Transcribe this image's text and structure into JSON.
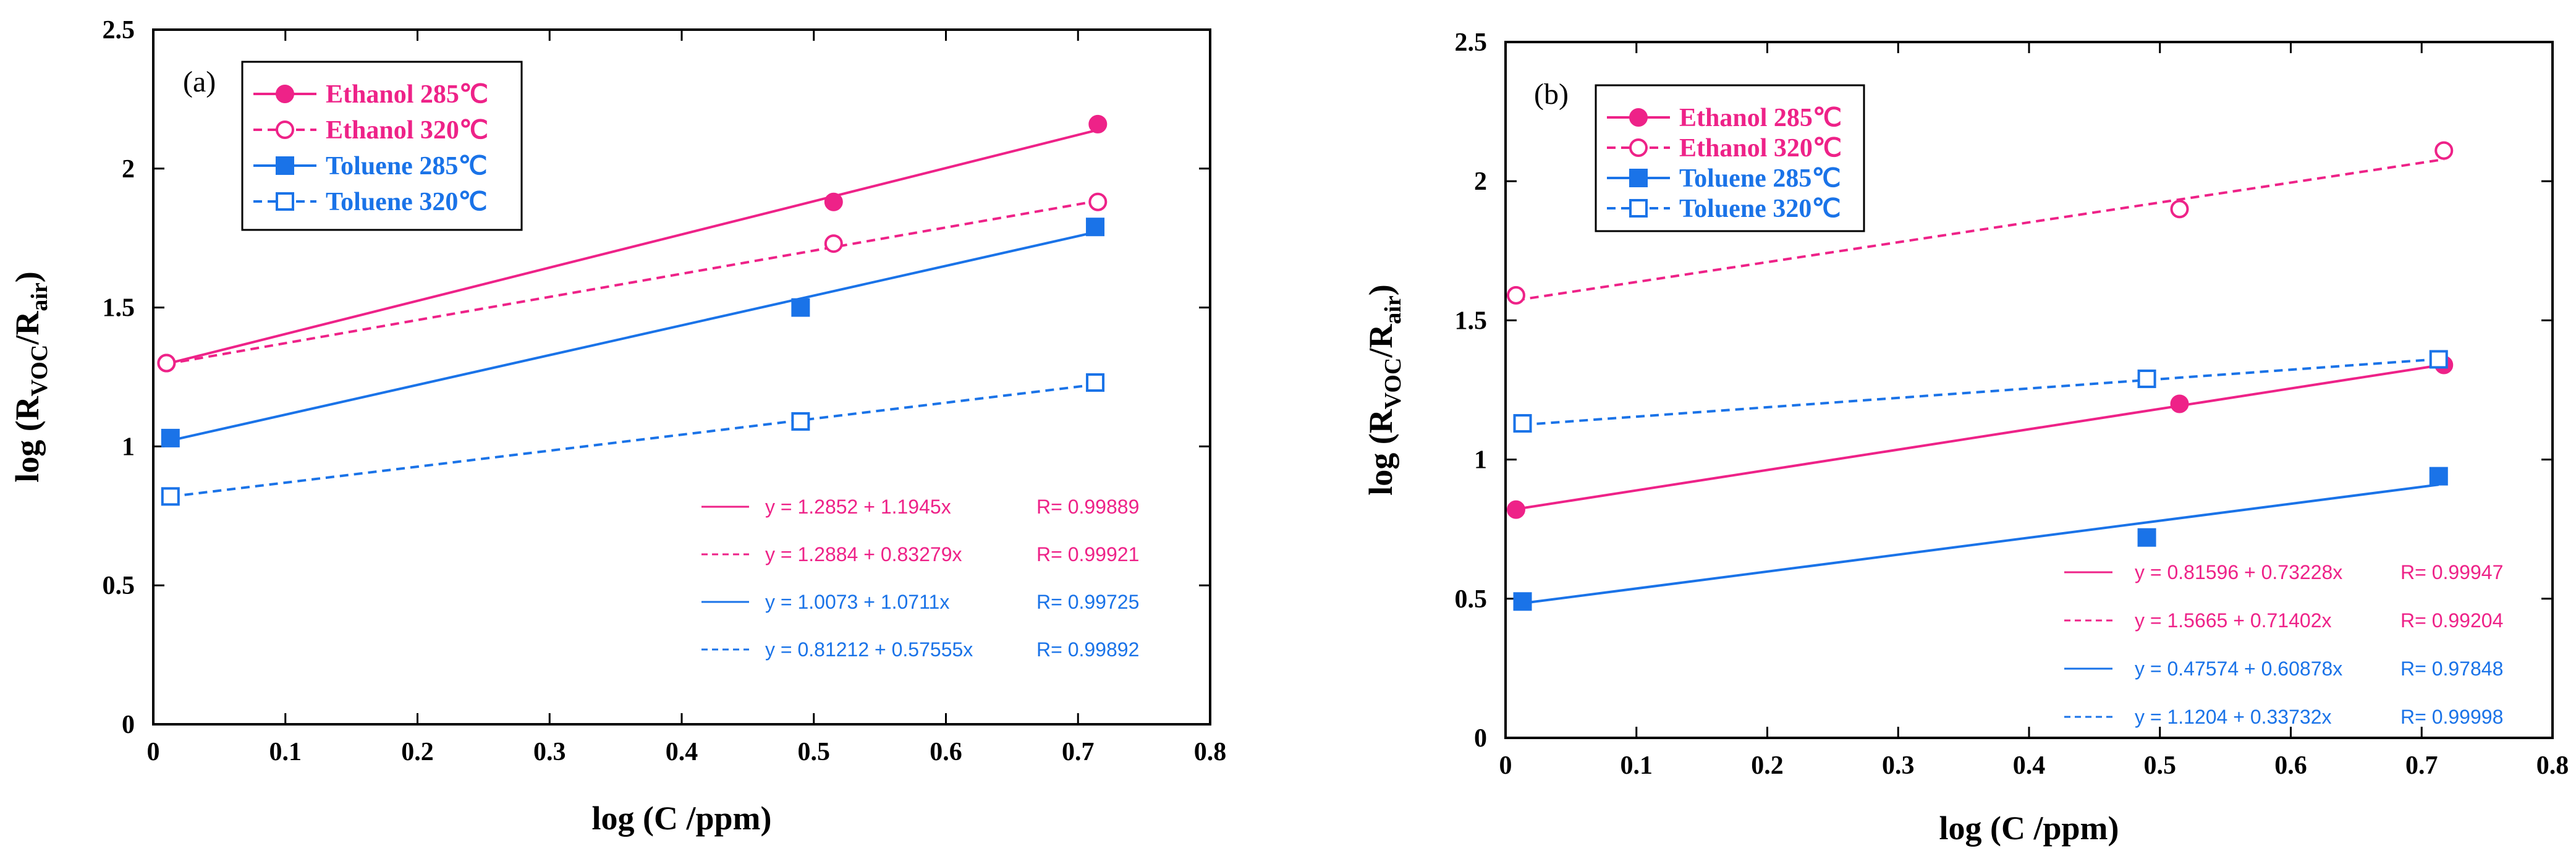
{
  "chart_data": [
    {
      "type": "scatter",
      "panel_label": "(a)",
      "xlabel": "log (C /ppm)",
      "ylabel": {
        "main": "log (R",
        "sub1": "VOC",
        "mid": "/R",
        "sub2": "air",
        "end": ")"
      },
      "xlim": [
        0,
        0.8
      ],
      "ylim": [
        0,
        2.5
      ],
      "xticks": [
        0,
        0.1,
        0.2,
        0.3,
        0.4,
        0.5,
        0.6,
        0.7,
        0.8
      ],
      "xtick_labels": [
        "0",
        "0.1",
        "0.2",
        "0.3",
        "0.4",
        "0.5",
        "0.6",
        "0.7",
        "0.8"
      ],
      "yticks": [
        0,
        0.5,
        1,
        1.5,
        2,
        2.5
      ],
      "ytick_labels": [
        "0",
        "0.5",
        "1",
        "1.5",
        "2",
        "2.5"
      ],
      "legend_position": "top-left",
      "series": [
        {
          "name": "Ethanol 285℃",
          "color": "#ee2288",
          "marker": "filled-circle",
          "line": "solid",
          "x": [
            0.01,
            0.515,
            0.715
          ],
          "y": [
            1.3,
            1.88,
            2.16
          ],
          "fit": {
            "intercept": 1.2852,
            "slope": 1.1945,
            "x_range": [
              0.01,
              0.715
            ],
            "label": "y = 1.2852 + 1.1945x",
            "r": "R= 0.99889"
          }
        },
        {
          "name": "Ethanol 320℃",
          "color": "#ee2288",
          "marker": "open-circle",
          "line": "dashed",
          "x": [
            0.01,
            0.515,
            0.715
          ],
          "y": [
            1.3,
            1.73,
            1.88
          ],
          "fit": {
            "intercept": 1.2884,
            "slope": 0.83279,
            "x_range": [
              0.01,
              0.715
            ],
            "label": "y = 1.2884 + 0.83279x",
            "r": "R= 0.99921"
          }
        },
        {
          "name": "Toluene 285℃",
          "color": "#1a73e8",
          "marker": "filled-square",
          "line": "solid",
          "x": [
            0.013,
            0.49,
            0.713
          ],
          "y": [
            1.03,
            1.5,
            1.79
          ],
          "fit": {
            "intercept": 1.0073,
            "slope": 1.0711,
            "x_range": [
              0.013,
              0.713
            ],
            "label": "y = 1.0073 + 1.0711x",
            "r": "R= 0.99725"
          }
        },
        {
          "name": "Toluene 320℃",
          "color": "#1a73e8",
          "marker": "open-square",
          "line": "dashed",
          "x": [
            0.013,
            0.49,
            0.713
          ],
          "y": [
            0.82,
            1.09,
            1.23
          ],
          "fit": {
            "intercept": 0.81212,
            "slope": 0.57555,
            "x_range": [
              0.013,
              0.713
            ],
            "label": "y = 0.81212 + 0.57555x",
            "r": "R= 0.99892"
          }
        }
      ]
    },
    {
      "type": "scatter",
      "panel_label": "(b)",
      "xlabel": "log (C /ppm)",
      "ylabel": {
        "main": "log (R",
        "sub1": "VOC",
        "mid": "/R",
        "sub2": "air",
        "end": ")"
      },
      "xlim": [
        0,
        0.8
      ],
      "ylim": [
        0,
        2.5
      ],
      "xticks": [
        0,
        0.1,
        0.2,
        0.3,
        0.4,
        0.5,
        0.6,
        0.7,
        0.8
      ],
      "xtick_labels": [
        "0",
        "0.1",
        "0.2",
        "0.3",
        "0.4",
        "0.5",
        "0.6",
        "0.7",
        "0.8"
      ],
      "yticks": [
        0,
        0.5,
        1,
        1.5,
        2,
        2.5
      ],
      "ytick_labels": [
        "0",
        "0.5",
        "1",
        "1.5",
        "2",
        "2.5"
      ],
      "legend_position": "top-left",
      "series": [
        {
          "name": "Ethanol 285℃",
          "color": "#ee2288",
          "marker": "filled-circle",
          "line": "solid",
          "x": [
            0.008,
            0.515,
            0.717
          ],
          "y": [
            0.82,
            1.2,
            1.34
          ],
          "fit": {
            "intercept": 0.81596,
            "slope": 0.73228,
            "x_range": [
              0.008,
              0.717
            ],
            "label": "y = 0.81596 + 0.73228x",
            "r": "R= 0.99947"
          }
        },
        {
          "name": "Ethanol 320℃",
          "color": "#ee2288",
          "marker": "open-circle",
          "line": "dashed",
          "x": [
            0.008,
            0.515,
            0.717
          ],
          "y": [
            1.59,
            1.9,
            2.11
          ],
          "fit": {
            "intercept": 1.5665,
            "slope": 0.71402,
            "x_range": [
              0.008,
              0.717
            ],
            "label": "y = 1.5665 + 0.71402x",
            "r": "R= 0.99204"
          }
        },
        {
          "name": "Toluene 285℃",
          "color": "#1a73e8",
          "marker": "filled-square",
          "line": "solid",
          "x": [
            0.013,
            0.49,
            0.713
          ],
          "y": [
            0.49,
            0.72,
            0.94
          ],
          "fit": {
            "intercept": 0.47574,
            "slope": 0.60878,
            "x_range": [
              0.013,
              0.713
            ],
            "label": "y = 0.47574 + 0.60878x",
            "r": "R= 0.97848"
          }
        },
        {
          "name": "Toluene 320℃",
          "color": "#1a73e8",
          "marker": "open-square",
          "line": "dashed",
          "x": [
            0.013,
            0.49,
            0.713
          ],
          "y": [
            1.13,
            1.29,
            1.36
          ],
          "fit": {
            "intercept": 1.1204,
            "slope": 0.33732,
            "x_range": [
              0.013,
              0.713
            ],
            "label": "y = 1.1204 + 0.33732x",
            "r": "R= 0.99998"
          }
        }
      ]
    }
  ]
}
